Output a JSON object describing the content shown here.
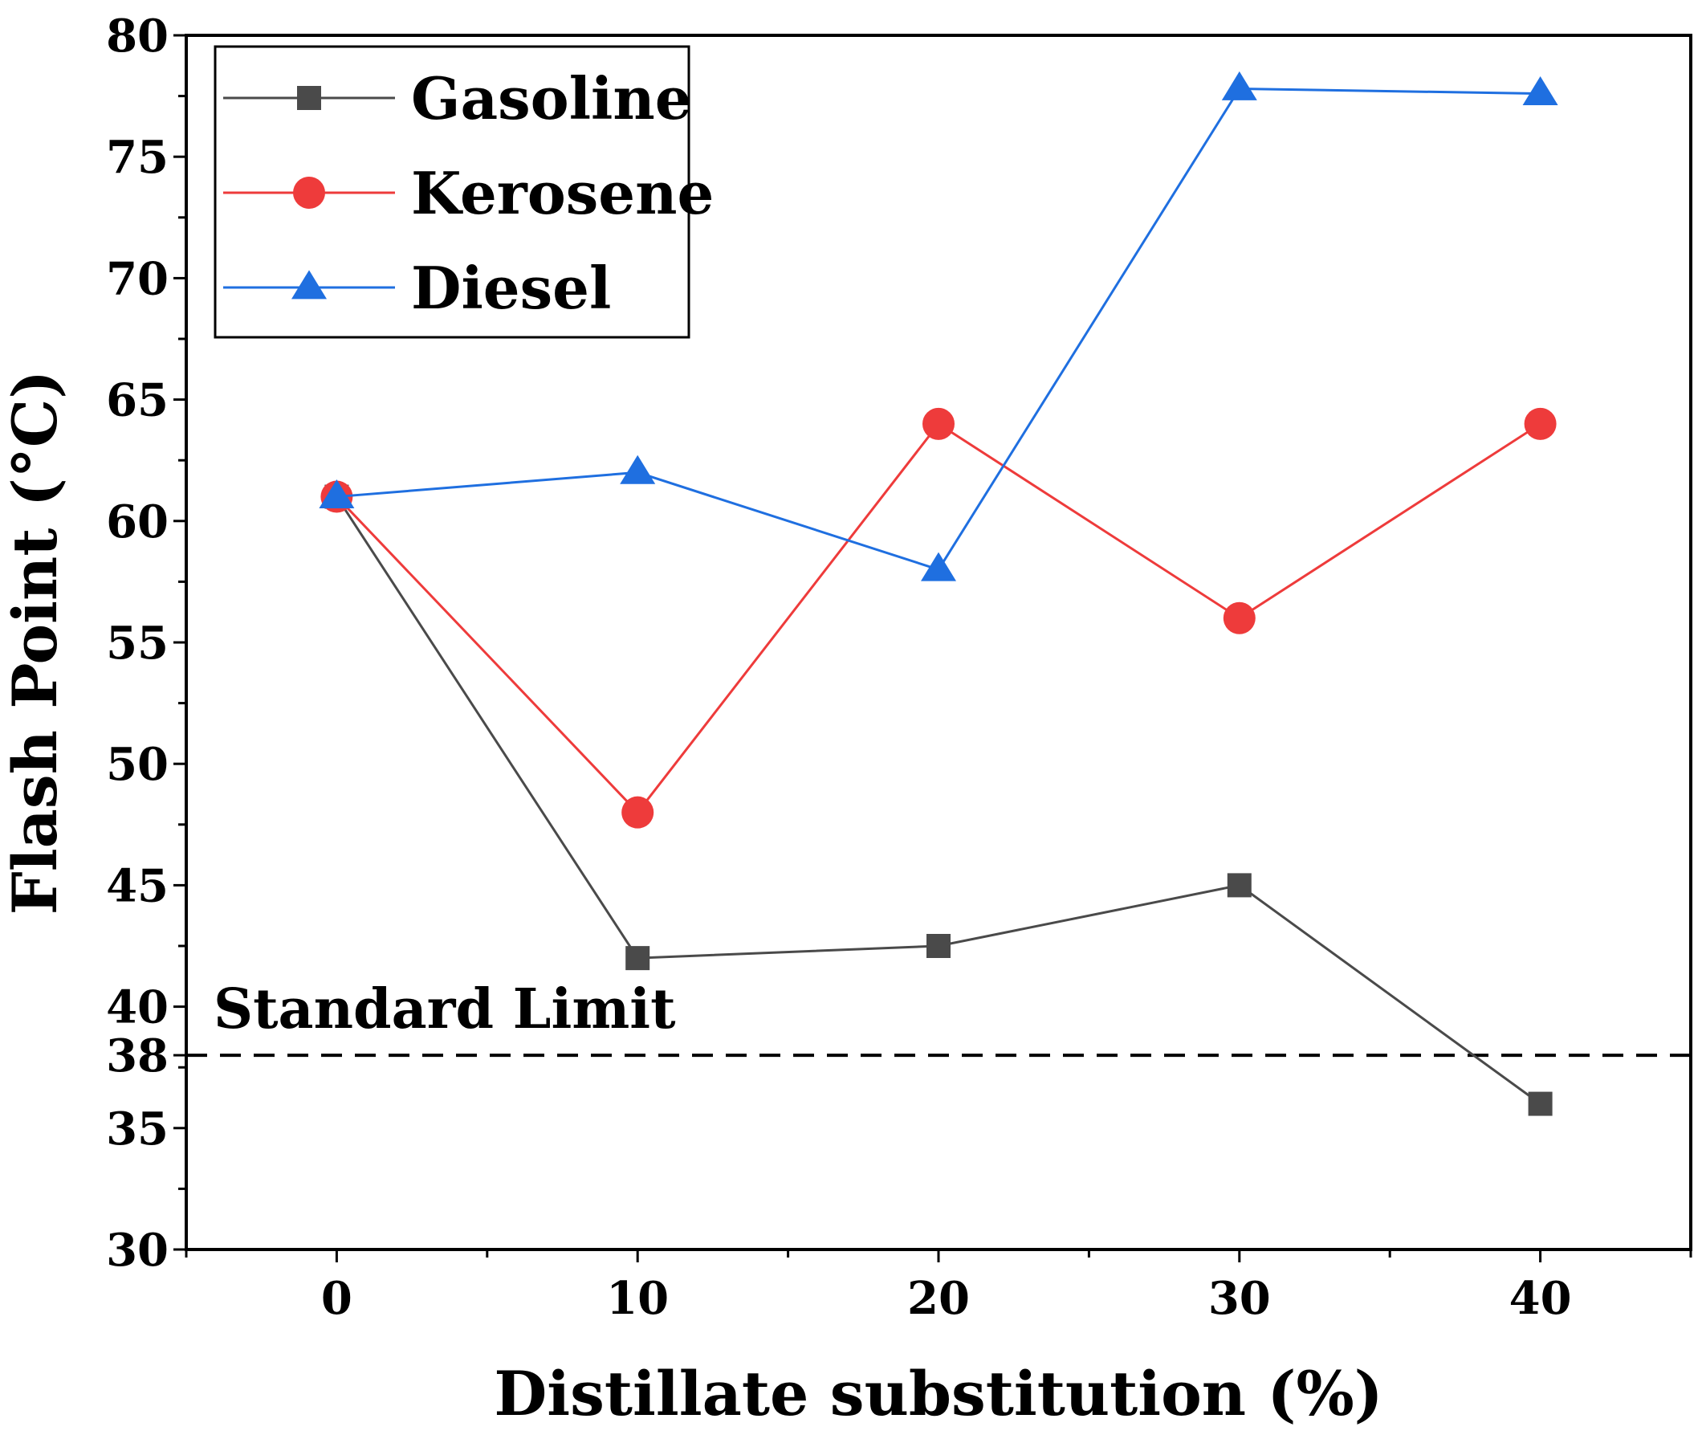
{
  "chart_data": {
    "type": "line",
    "title": "",
    "xlabel": "Distillate substitution (%)",
    "ylabel": "Flash Point (°C)",
    "x": [
      0,
      10,
      20,
      30,
      40
    ],
    "xlim": [
      -5,
      45
    ],
    "ylim": [
      30,
      80
    ],
    "xticks": [
      "0",
      "10",
      "20",
      "30",
      "40"
    ],
    "yticks": [
      "30",
      "35",
      "38",
      "40",
      "45",
      "50",
      "55",
      "60",
      "65",
      "70",
      "75",
      "80"
    ],
    "grid": false,
    "legend_position": "top-left",
    "series": [
      {
        "name": "Gasoline",
        "values": [
          61,
          42,
          42.5,
          45,
          36
        ],
        "color": "#4a4a4a",
        "marker": "square"
      },
      {
        "name": "Kerosene",
        "values": [
          61,
          48,
          64,
          56,
          64
        ],
        "color": "#ee3b3b",
        "marker": "circle"
      },
      {
        "name": "Diesel",
        "values": [
          61,
          62,
          58,
          77.8,
          77.6
        ],
        "color": "#1f6fe0",
        "marker": "triangle"
      }
    ],
    "reference_line": {
      "label": "Standard Limit",
      "value": 38,
      "style": "dashed"
    }
  }
}
